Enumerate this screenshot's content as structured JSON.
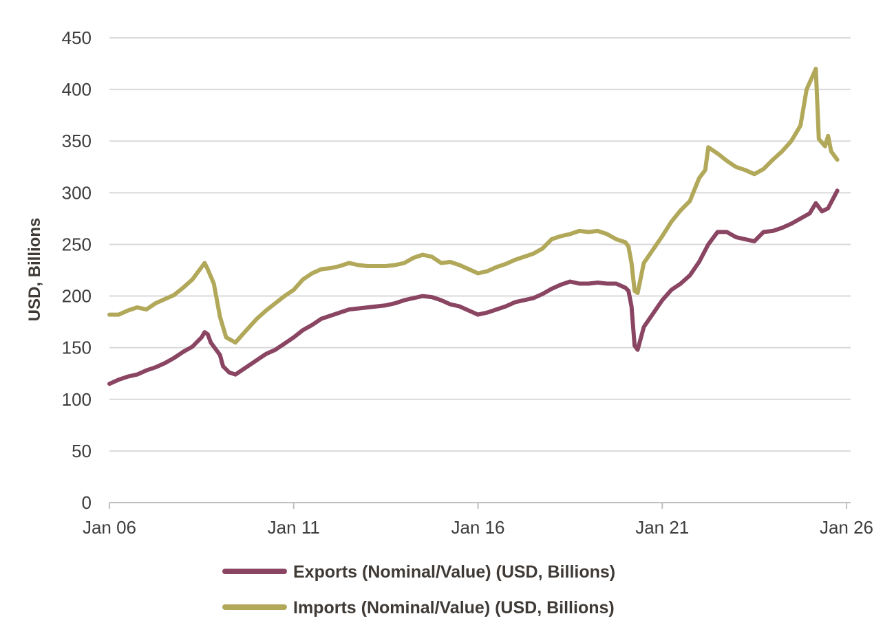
{
  "chart_data": {
    "type": "line",
    "title": "",
    "xlabel": "",
    "ylabel": "USD, Billions",
    "ylim": [
      0,
      450
    ],
    "y_ticks": [
      0,
      50,
      100,
      150,
      200,
      250,
      300,
      350,
      400,
      450
    ],
    "x_ticks": [
      "Jan 06",
      "Jan 11",
      "Jan 16",
      "Jan 21",
      "Jan 26"
    ],
    "x_range": [
      "2006-01",
      "2026-01"
    ],
    "grid": "horizontal",
    "legend_position": "bottom",
    "series": [
      {
        "name": "Exports (Nominal/Value) (USD, Billions)",
        "color": "#8a4562",
        "points": [
          [
            "2006-01",
            115
          ],
          [
            "2006-04",
            119
          ],
          [
            "2006-07",
            122
          ],
          [
            "2006-10",
            124
          ],
          [
            "2007-01",
            128
          ],
          [
            "2007-04",
            131
          ],
          [
            "2007-07",
            135
          ],
          [
            "2007-10",
            140
          ],
          [
            "2008-01",
            146
          ],
          [
            "2008-04",
            151
          ],
          [
            "2008-07",
            160
          ],
          [
            "2008-08",
            165
          ],
          [
            "2008-09",
            163
          ],
          [
            "2008-10",
            155
          ],
          [
            "2009-01",
            143
          ],
          [
            "2009-02",
            132
          ],
          [
            "2009-04",
            126
          ],
          [
            "2009-06",
            124
          ],
          [
            "2009-09",
            130
          ],
          [
            "2010-01",
            138
          ],
          [
            "2010-04",
            144
          ],
          [
            "2010-07",
            148
          ],
          [
            "2010-10",
            154
          ],
          [
            "2011-01",
            160
          ],
          [
            "2011-04",
            167
          ],
          [
            "2011-07",
            172
          ],
          [
            "2011-10",
            178
          ],
          [
            "2012-01",
            181
          ],
          [
            "2012-04",
            184
          ],
          [
            "2012-07",
            187
          ],
          [
            "2012-10",
            188
          ],
          [
            "2013-01",
            189
          ],
          [
            "2013-04",
            190
          ],
          [
            "2013-07",
            191
          ],
          [
            "2013-10",
            193
          ],
          [
            "2014-01",
            196
          ],
          [
            "2014-04",
            198
          ],
          [
            "2014-07",
            200
          ],
          [
            "2014-10",
            199
          ],
          [
            "2015-01",
            196
          ],
          [
            "2015-04",
            192
          ],
          [
            "2015-07",
            190
          ],
          [
            "2015-10",
            186
          ],
          [
            "2016-01",
            182
          ],
          [
            "2016-04",
            184
          ],
          [
            "2016-07",
            187
          ],
          [
            "2016-10",
            190
          ],
          [
            "2017-01",
            194
          ],
          [
            "2017-04",
            196
          ],
          [
            "2017-07",
            198
          ],
          [
            "2017-10",
            202
          ],
          [
            "2018-01",
            207
          ],
          [
            "2018-04",
            211
          ],
          [
            "2018-07",
            214
          ],
          [
            "2018-10",
            212
          ],
          [
            "2019-01",
            212
          ],
          [
            "2019-04",
            213
          ],
          [
            "2019-07",
            212
          ],
          [
            "2019-10",
            212
          ],
          [
            "2020-01",
            208
          ],
          [
            "2020-02",
            205
          ],
          [
            "2020-03",
            190
          ],
          [
            "2020-04",
            152
          ],
          [
            "2020-05",
            148
          ],
          [
            "2020-07",
            170
          ],
          [
            "2020-10",
            183
          ],
          [
            "2021-01",
            196
          ],
          [
            "2021-04",
            206
          ],
          [
            "2021-07",
            212
          ],
          [
            "2021-10",
            220
          ],
          [
            "2022-01",
            233
          ],
          [
            "2022-04",
            250
          ],
          [
            "2022-07",
            262
          ],
          [
            "2022-10",
            262
          ],
          [
            "2023-01",
            257
          ],
          [
            "2023-04",
            255
          ],
          [
            "2023-07",
            253
          ],
          [
            "2023-10",
            262
          ],
          [
            "2024-01",
            263
          ],
          [
            "2024-04",
            266
          ],
          [
            "2024-07",
            270
          ],
          [
            "2024-10",
            275
          ],
          [
            "2025-01",
            280
          ],
          [
            "2025-03",
            290
          ],
          [
            "2025-05",
            282
          ],
          [
            "2025-07",
            285
          ],
          [
            "2025-10",
            302
          ]
        ]
      },
      {
        "name": "Imports (Nominal/Value) (USD, Billions)",
        "color": "#b1a85a",
        "points": [
          [
            "2006-01",
            182
          ],
          [
            "2006-04",
            182
          ],
          [
            "2006-07",
            186
          ],
          [
            "2006-10",
            189
          ],
          [
            "2007-01",
            187
          ],
          [
            "2007-04",
            193
          ],
          [
            "2007-07",
            197
          ],
          [
            "2007-10",
            201
          ],
          [
            "2008-01",
            208
          ],
          [
            "2008-04",
            216
          ],
          [
            "2008-07",
            228
          ],
          [
            "2008-08",
            232
          ],
          [
            "2008-09",
            226
          ],
          [
            "2008-11",
            212
          ],
          [
            "2009-01",
            180
          ],
          [
            "2009-03",
            160
          ],
          [
            "2009-06",
            155
          ],
          [
            "2009-09",
            165
          ],
          [
            "2010-01",
            178
          ],
          [
            "2010-04",
            186
          ],
          [
            "2010-07",
            193
          ],
          [
            "2010-10",
            200
          ],
          [
            "2011-01",
            206
          ],
          [
            "2011-04",
            216
          ],
          [
            "2011-07",
            222
          ],
          [
            "2011-10",
            226
          ],
          [
            "2012-01",
            227
          ],
          [
            "2012-04",
            229
          ],
          [
            "2012-07",
            232
          ],
          [
            "2012-10",
            230
          ],
          [
            "2013-01",
            229
          ],
          [
            "2013-04",
            229
          ],
          [
            "2013-07",
            229
          ],
          [
            "2013-10",
            230
          ],
          [
            "2014-01",
            232
          ],
          [
            "2014-04",
            237
          ],
          [
            "2014-07",
            240
          ],
          [
            "2014-10",
            238
          ],
          [
            "2015-01",
            232
          ],
          [
            "2015-04",
            233
          ],
          [
            "2015-07",
            230
          ],
          [
            "2015-10",
            226
          ],
          [
            "2016-01",
            222
          ],
          [
            "2016-04",
            224
          ],
          [
            "2016-07",
            228
          ],
          [
            "2016-10",
            231
          ],
          [
            "2017-01",
            235
          ],
          [
            "2017-04",
            238
          ],
          [
            "2017-07",
            241
          ],
          [
            "2017-10",
            246
          ],
          [
            "2018-01",
            255
          ],
          [
            "2018-04",
            258
          ],
          [
            "2018-07",
            260
          ],
          [
            "2018-10",
            263
          ],
          [
            "2019-01",
            262
          ],
          [
            "2019-04",
            263
          ],
          [
            "2019-07",
            260
          ],
          [
            "2019-10",
            255
          ],
          [
            "2020-01",
            252
          ],
          [
            "2020-02",
            248
          ],
          [
            "2020-03",
            232
          ],
          [
            "2020-04",
            205
          ],
          [
            "2020-05",
            203
          ],
          [
            "2020-07",
            232
          ],
          [
            "2020-10",
            245
          ],
          [
            "2021-01",
            258
          ],
          [
            "2021-04",
            272
          ],
          [
            "2021-07",
            283
          ],
          [
            "2021-10",
            292
          ],
          [
            "2022-01",
            314
          ],
          [
            "2022-03",
            322
          ],
          [
            "2022-04",
            344
          ],
          [
            "2022-07",
            338
          ],
          [
            "2022-10",
            331
          ],
          [
            "2023-01",
            325
          ],
          [
            "2023-04",
            322
          ],
          [
            "2023-07",
            318
          ],
          [
            "2023-10",
            323
          ],
          [
            "2024-01",
            332
          ],
          [
            "2024-04",
            340
          ],
          [
            "2024-07",
            350
          ],
          [
            "2024-10",
            365
          ],
          [
            "2024-12",
            400
          ],
          [
            "2025-03",
            420
          ],
          [
            "2025-04",
            352
          ],
          [
            "2025-06",
            345
          ],
          [
            "2025-07",
            355
          ],
          [
            "2025-08",
            340
          ],
          [
            "2025-10",
            332
          ]
        ]
      }
    ]
  }
}
